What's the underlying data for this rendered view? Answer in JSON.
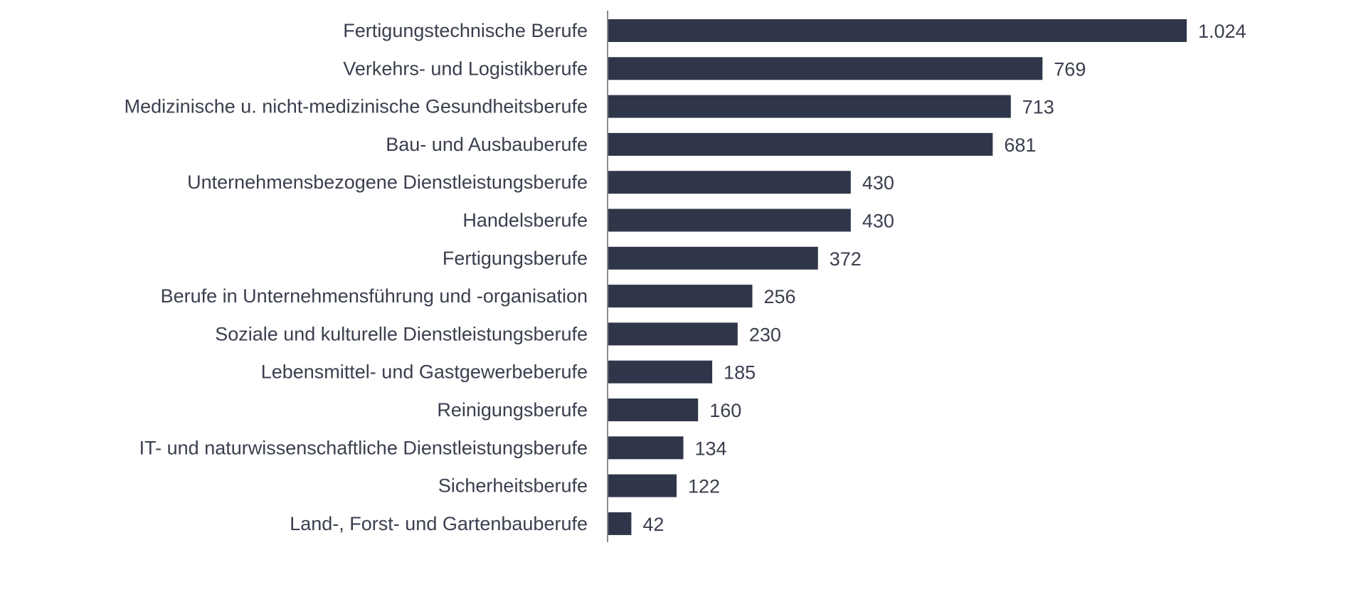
{
  "chart_data": {
    "type": "bar",
    "orientation": "horizontal",
    "categories": [
      "Fertigungstechnische Berufe",
      "Verkehrs- und Logistikberufe",
      "Medizinische u. nicht-medizinische Gesundheitsberufe",
      "Bau- und Ausbauberufe",
      "Unternehmensbezogene Dienstleistungsberufe",
      "Handelsberufe",
      "Fertigungsberufe",
      "Berufe in Unternehmensführung und -organisation",
      "Soziale und kulturelle Dienstleistungsberufe",
      "Lebensmittel- und Gastgewerbeberufe",
      "Reinigungsberufe",
      "IT- und naturwissenschaftliche Dienstleistungsberufe",
      "Sicherheitsberufe",
      "Land-, Forst- und Gartenbauberufe"
    ],
    "values": [
      1024,
      769,
      713,
      681,
      430,
      430,
      372,
      256,
      230,
      185,
      160,
      134,
      122,
      42
    ],
    "data_labels": [
      "1.024",
      "769",
      "713",
      "681",
      "430",
      "430",
      "372",
      "256",
      "230",
      "185",
      "160",
      "134",
      "122",
      "42"
    ],
    "title": "",
    "xlabel": "",
    "ylabel": "",
    "xlim": [
      0,
      1024
    ],
    "grid": false,
    "legend": "none",
    "bar_color": "#2f3649"
  }
}
